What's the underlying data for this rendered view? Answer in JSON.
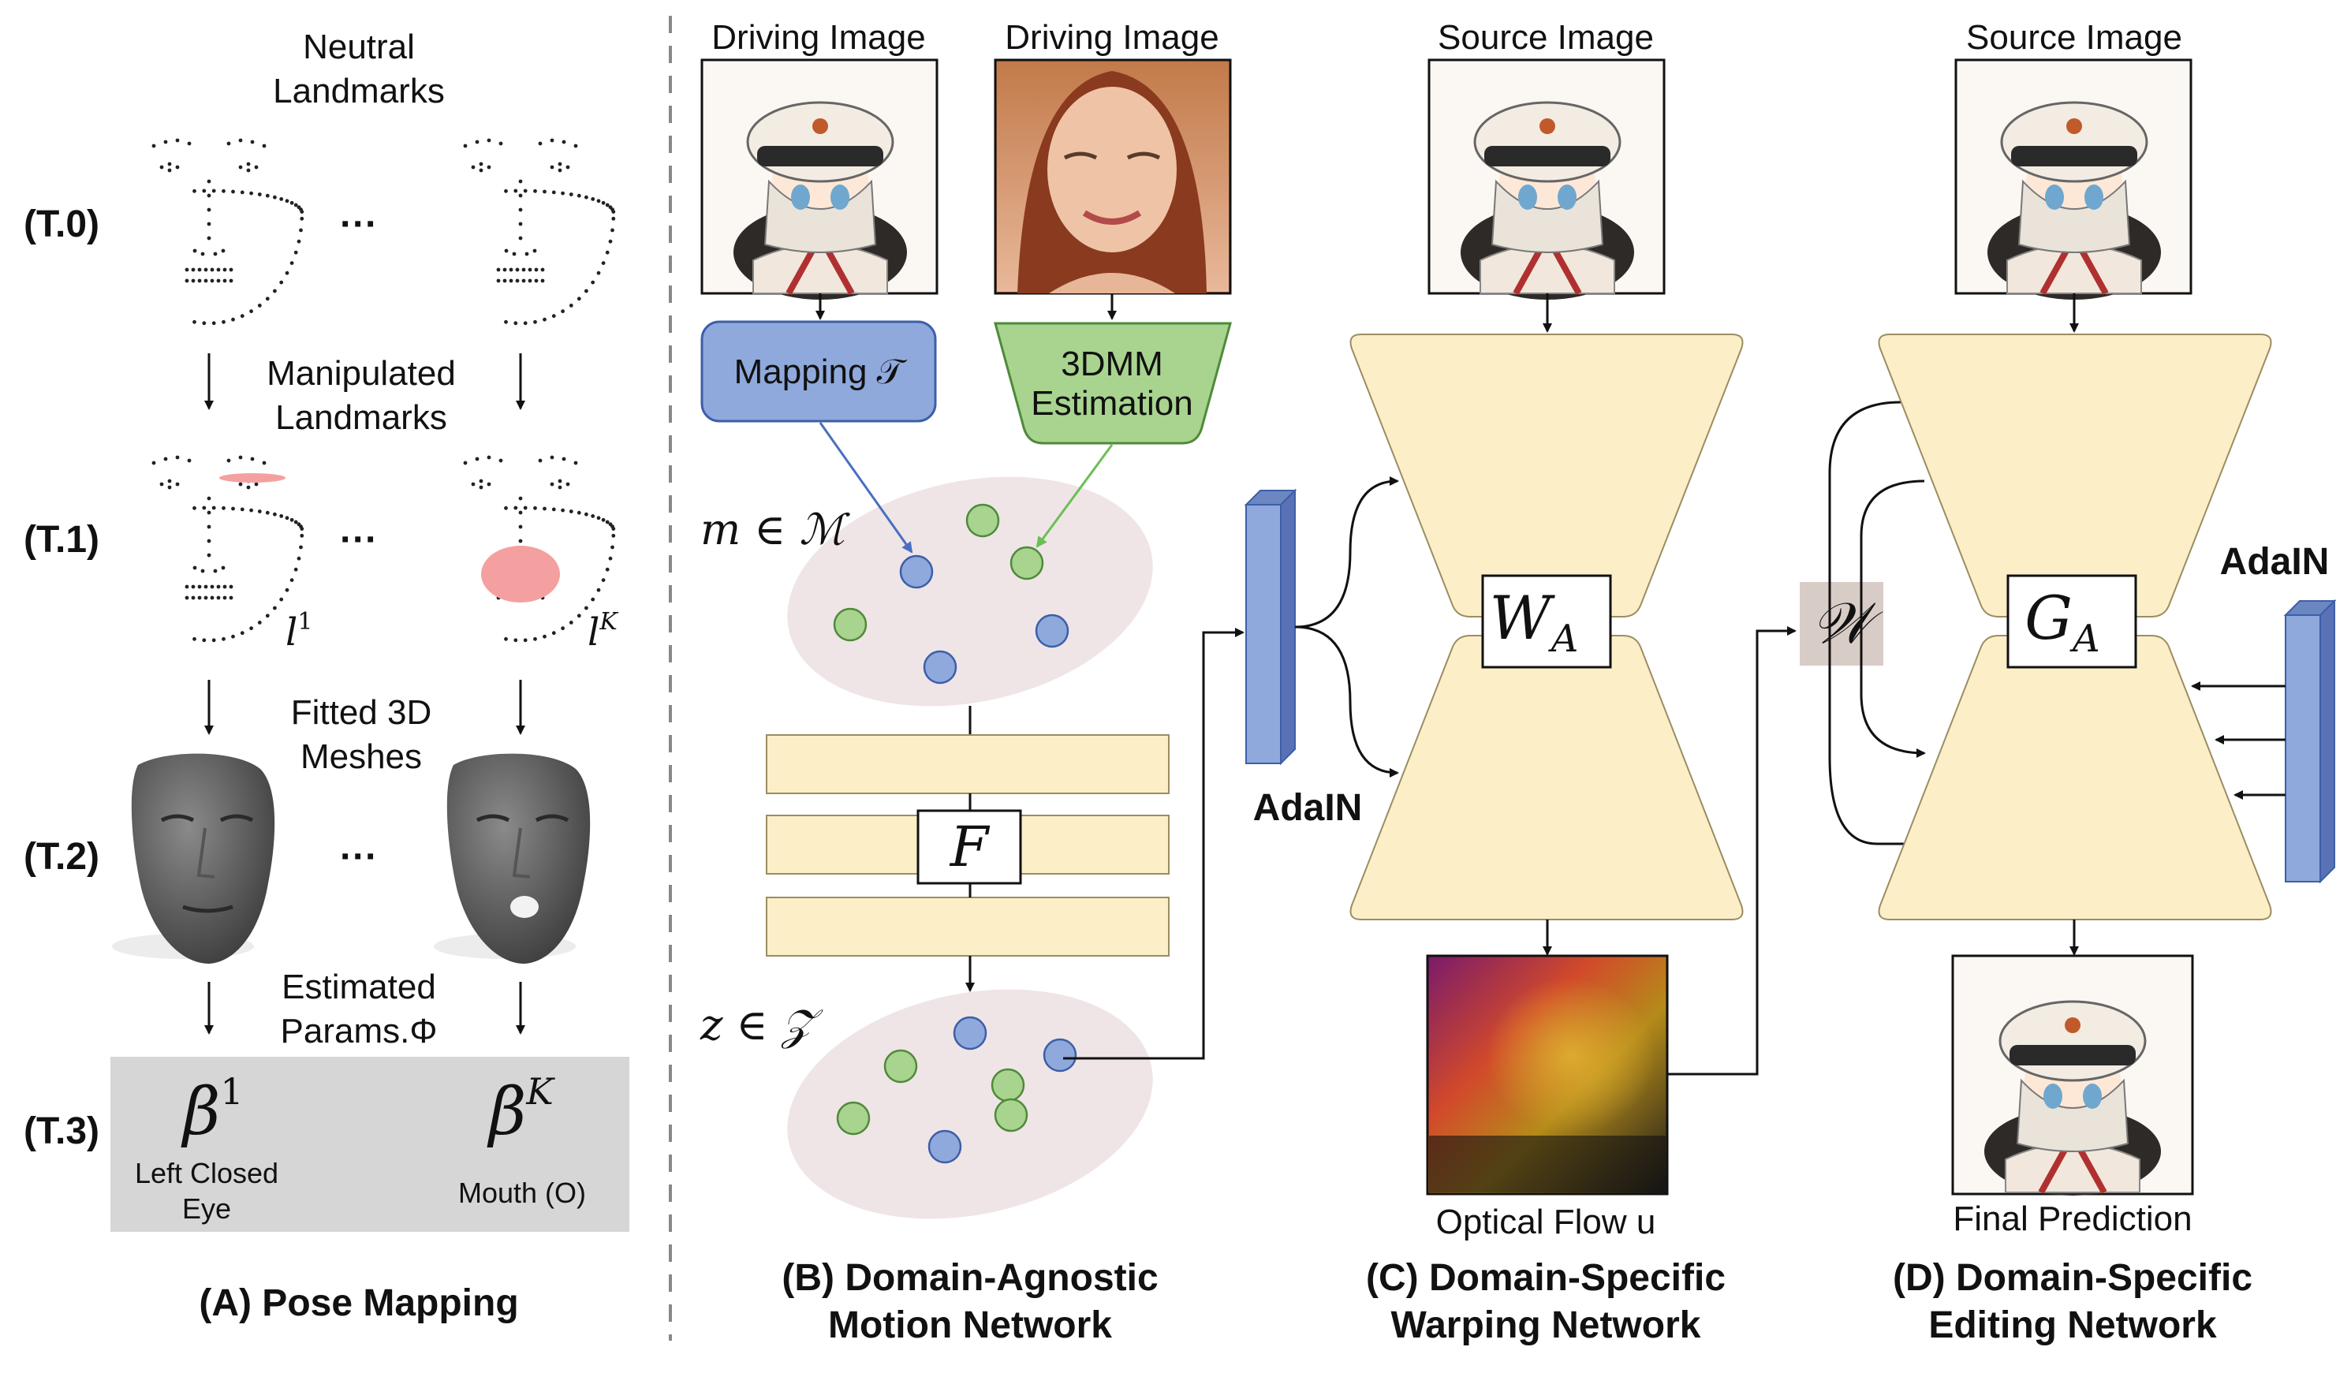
{
  "panel_a": {
    "caption": "(A) Pose Mapping",
    "neutral_landmarks": [
      "Neutral",
      "Landmarks"
    ],
    "manipulated_landmarks": [
      "Manipulated",
      "Landmarks"
    ],
    "fitted_meshes": [
      "Fitted 3D",
      "Meshes"
    ],
    "estimated_params": [
      "Estimated",
      "Params.Φ"
    ],
    "row_labels": [
      "(T.0)",
      "(T.1)",
      "(T.2)",
      "(T.3)"
    ],
    "ellipsis": "···",
    "landmark_1": "l",
    "landmark_1_sup": "1",
    "landmark_k": "l",
    "landmark_k_sup": "K",
    "beta_1": "β",
    "beta_1_sup": "1",
    "beta_k": "β",
    "beta_k_sup": "K",
    "param_1_label": [
      "Left Closed",
      "Eye"
    ],
    "param_k_label": "Mouth (O)"
  },
  "panel_b": {
    "caption": [
      "(B) Domain-Agnostic",
      "Motion Network"
    ],
    "driving_image_1": "Driving Image",
    "driving_image_2": "Driving Image",
    "mapping_label": "Mapping 𝒯",
    "estimation_label": [
      "3DMM",
      "Estimation"
    ],
    "m_space": "m ∈ ℳ",
    "z_space": "z ∈ 𝒵",
    "f_label": "F"
  },
  "panel_c": {
    "caption": [
      "(C) Domain-Specific",
      "Warping Network"
    ],
    "source_image": "Source Image",
    "adain": "AdaIN",
    "w_a": "W",
    "w_a_sub": "A",
    "optical_flow": "Optical Flow u"
  },
  "panel_d": {
    "caption": [
      "(D) Domain-Specific",
      "Editing Network"
    ],
    "source_image": "Source Image",
    "adain": "AdaIN",
    "w_label": "𝒲",
    "g_a": "G",
    "g_a_sub": "A",
    "final_prediction": "Final Prediction"
  },
  "colors": {
    "blue_fill": "#8fa9dc",
    "blue_stroke": "#3d5fa8",
    "green_fill": "#a8d48f",
    "green_stroke": "#4f8a3a",
    "cream": "#fcefc8",
    "ellipse_bg": "#efe5e7",
    "gray_box": "#d6d6d6",
    "w_box": "#d8ccc6",
    "highlight": "#f4a0a0"
  }
}
